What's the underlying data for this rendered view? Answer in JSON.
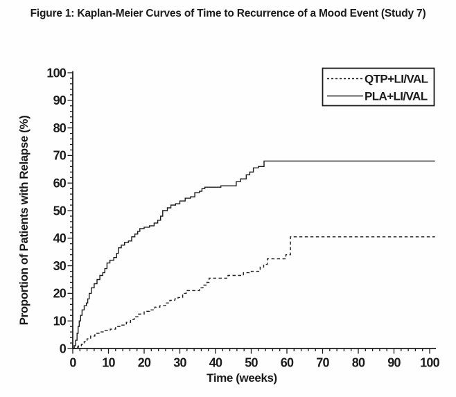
{
  "chart_data": {
    "type": "line",
    "subtype": "kaplan-meier-step",
    "title": "Figure 1: Kaplan-Meier Curves of Time to Recurrence of a Mood Event (Study 7)",
    "xlabel": "Time (weeks)",
    "ylabel": "Proportion of Patients with Relapse (%)",
    "xlim": [
      0,
      100
    ],
    "ylim": [
      0,
      100
    ],
    "x_major_ticks": [
      0,
      10,
      20,
      30,
      40,
      50,
      60,
      70,
      80,
      90,
      100
    ],
    "y_major_ticks": [
      0,
      10,
      20,
      30,
      40,
      50,
      60,
      70,
      80,
      90,
      100
    ],
    "x_minor_step": 2,
    "y_minor_step": 2,
    "grid": false,
    "legend_position": "top-right",
    "line_color": "#1b1b1b",
    "background_color": "#fefefe",
    "curve_end_week": 101.5,
    "series": [
      {
        "name": "QTP+LI/VAL",
        "style": "dashed",
        "final_value_pct": 40.5,
        "step_points": [
          [
            0,
            0
          ],
          [
            0.8,
            0.5
          ],
          [
            1.6,
            1
          ],
          [
            2.4,
            1.5
          ],
          [
            3.2,
            2.5
          ],
          [
            4,
            3.5
          ],
          [
            5,
            4.5
          ],
          [
            6.2,
            5.5
          ],
          [
            7.5,
            6
          ],
          [
            9,
            6.5
          ],
          [
            10.5,
            7
          ],
          [
            12,
            8
          ],
          [
            13.5,
            8.5
          ],
          [
            15,
            9.5
          ],
          [
            16.2,
            10.5
          ],
          [
            17.2,
            11.5
          ],
          [
            18.4,
            12.5
          ],
          [
            20,
            13.5
          ],
          [
            21.5,
            14
          ],
          [
            23,
            15
          ],
          [
            24.4,
            15.5
          ],
          [
            26,
            16.5
          ],
          [
            27.2,
            17.5
          ],
          [
            28.6,
            18
          ],
          [
            29.5,
            18.5
          ],
          [
            30.8,
            20
          ],
          [
            31.8,
            21
          ],
          [
            35.5,
            22
          ],
          [
            36.5,
            23
          ],
          [
            37.6,
            24
          ],
          [
            38.2,
            25.5
          ],
          [
            43.5,
            26.5
          ],
          [
            47.8,
            27.5
          ],
          [
            50,
            28
          ],
          [
            52.5,
            29.5
          ],
          [
            53.5,
            30.5
          ],
          [
            54.5,
            32.5
          ],
          [
            59.7,
            34
          ],
          [
            61,
            40.5
          ],
          [
            101.5,
            40.5
          ]
        ]
      },
      {
        "name": "PLA+LI/VAL",
        "style": "solid",
        "final_value_pct": 68,
        "step_points": [
          [
            0,
            0
          ],
          [
            0.4,
            1
          ],
          [
            0.8,
            3
          ],
          [
            1.2,
            5.5
          ],
          [
            1.5,
            8
          ],
          [
            1.8,
            10
          ],
          [
            2.2,
            12
          ],
          [
            2.6,
            14
          ],
          [
            3.2,
            15.5
          ],
          [
            3.8,
            16.5
          ],
          [
            4.2,
            18
          ],
          [
            4.6,
            20
          ],
          [
            5.2,
            22
          ],
          [
            6,
            23.5
          ],
          [
            6.8,
            25
          ],
          [
            7.6,
            26.5
          ],
          [
            8.4,
            27.5
          ],
          [
            9,
            29
          ],
          [
            9.6,
            31
          ],
          [
            10.4,
            32
          ],
          [
            11.5,
            33
          ],
          [
            12.3,
            34.5
          ],
          [
            12.8,
            36.5
          ],
          [
            13.6,
            37.5
          ],
          [
            14.5,
            38.5
          ],
          [
            15.6,
            39
          ],
          [
            16.5,
            40.5
          ],
          [
            17.4,
            41.5
          ],
          [
            18.2,
            42.5
          ],
          [
            18.8,
            43.5
          ],
          [
            20,
            44
          ],
          [
            21.5,
            44.5
          ],
          [
            22.8,
            45.5
          ],
          [
            23.8,
            46.5
          ],
          [
            24.6,
            48
          ],
          [
            25.2,
            50
          ],
          [
            26.5,
            51
          ],
          [
            27.5,
            52
          ],
          [
            28.8,
            52.5
          ],
          [
            30,
            53.5
          ],
          [
            31.5,
            54.5
          ],
          [
            33,
            55
          ],
          [
            34.2,
            56.5
          ],
          [
            35.5,
            57
          ],
          [
            36.2,
            58
          ],
          [
            37,
            58.5
          ],
          [
            41.5,
            59
          ],
          [
            45.8,
            60.5
          ],
          [
            47,
            61.5
          ],
          [
            48.6,
            63
          ],
          [
            49.6,
            64
          ],
          [
            50.6,
            65.5
          ],
          [
            52,
            66
          ],
          [
            53.6,
            68
          ],
          [
            101.5,
            68
          ]
        ]
      }
    ]
  }
}
